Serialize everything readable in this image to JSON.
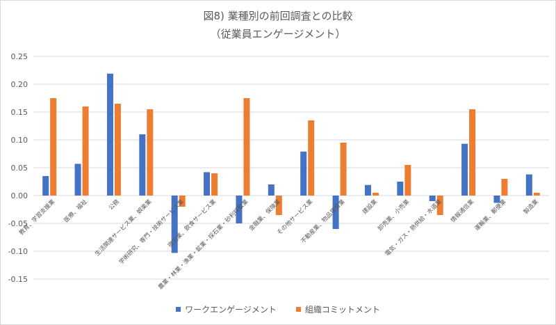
{
  "chart_data": {
    "type": "bar",
    "title": "図8) 業種別の前回調査との比較",
    "subtitle": "（従業員エンゲージメント）",
    "ylim": [
      -0.15,
      0.25
    ],
    "yticks": [
      "0.25",
      "0.20",
      "0.15",
      "0.10",
      "0.05",
      "0.00",
      "-0.05",
      "-0.10",
      "-0.15"
    ],
    "grid": true,
    "legend_position": "bottom",
    "categories": [
      "教育、学習支援業",
      "医療、福祉",
      "公務",
      "生活関連サービス業、娯楽業",
      "学術研究、専門・技術サービス業",
      "宿泊業、飲食サービス業",
      "農業・林業・漁業・鉱業・採石業・砂利採取業",
      "金融業、保険業",
      "その他サービス業",
      "不動産業、物品賃貸業",
      "建設業",
      "卸売業、小売業",
      "電気・ガス・熱供給・水道業",
      "情報通信業",
      "運輸業、郵便業",
      "製造業"
    ],
    "series": [
      {
        "name": "ワークエンゲージメント",
        "color": "#4472c4",
        "values": [
          0.035,
          0.057,
          0.219,
          0.11,
          -0.103,
          0.042,
          -0.05,
          0.02,
          0.079,
          -0.06,
          0.019,
          0.025,
          -0.01,
          0.093,
          -0.013,
          0.038
        ]
      },
      {
        "name": "組織コミットメント",
        "color": "#ed7d31",
        "values": [
          0.175,
          0.16,
          0.165,
          0.155,
          -0.02,
          0.04,
          0.175,
          -0.035,
          0.135,
          0.095,
          0.005,
          0.055,
          -0.035,
          0.155,
          0.03,
          0.005
        ]
      }
    ]
  }
}
